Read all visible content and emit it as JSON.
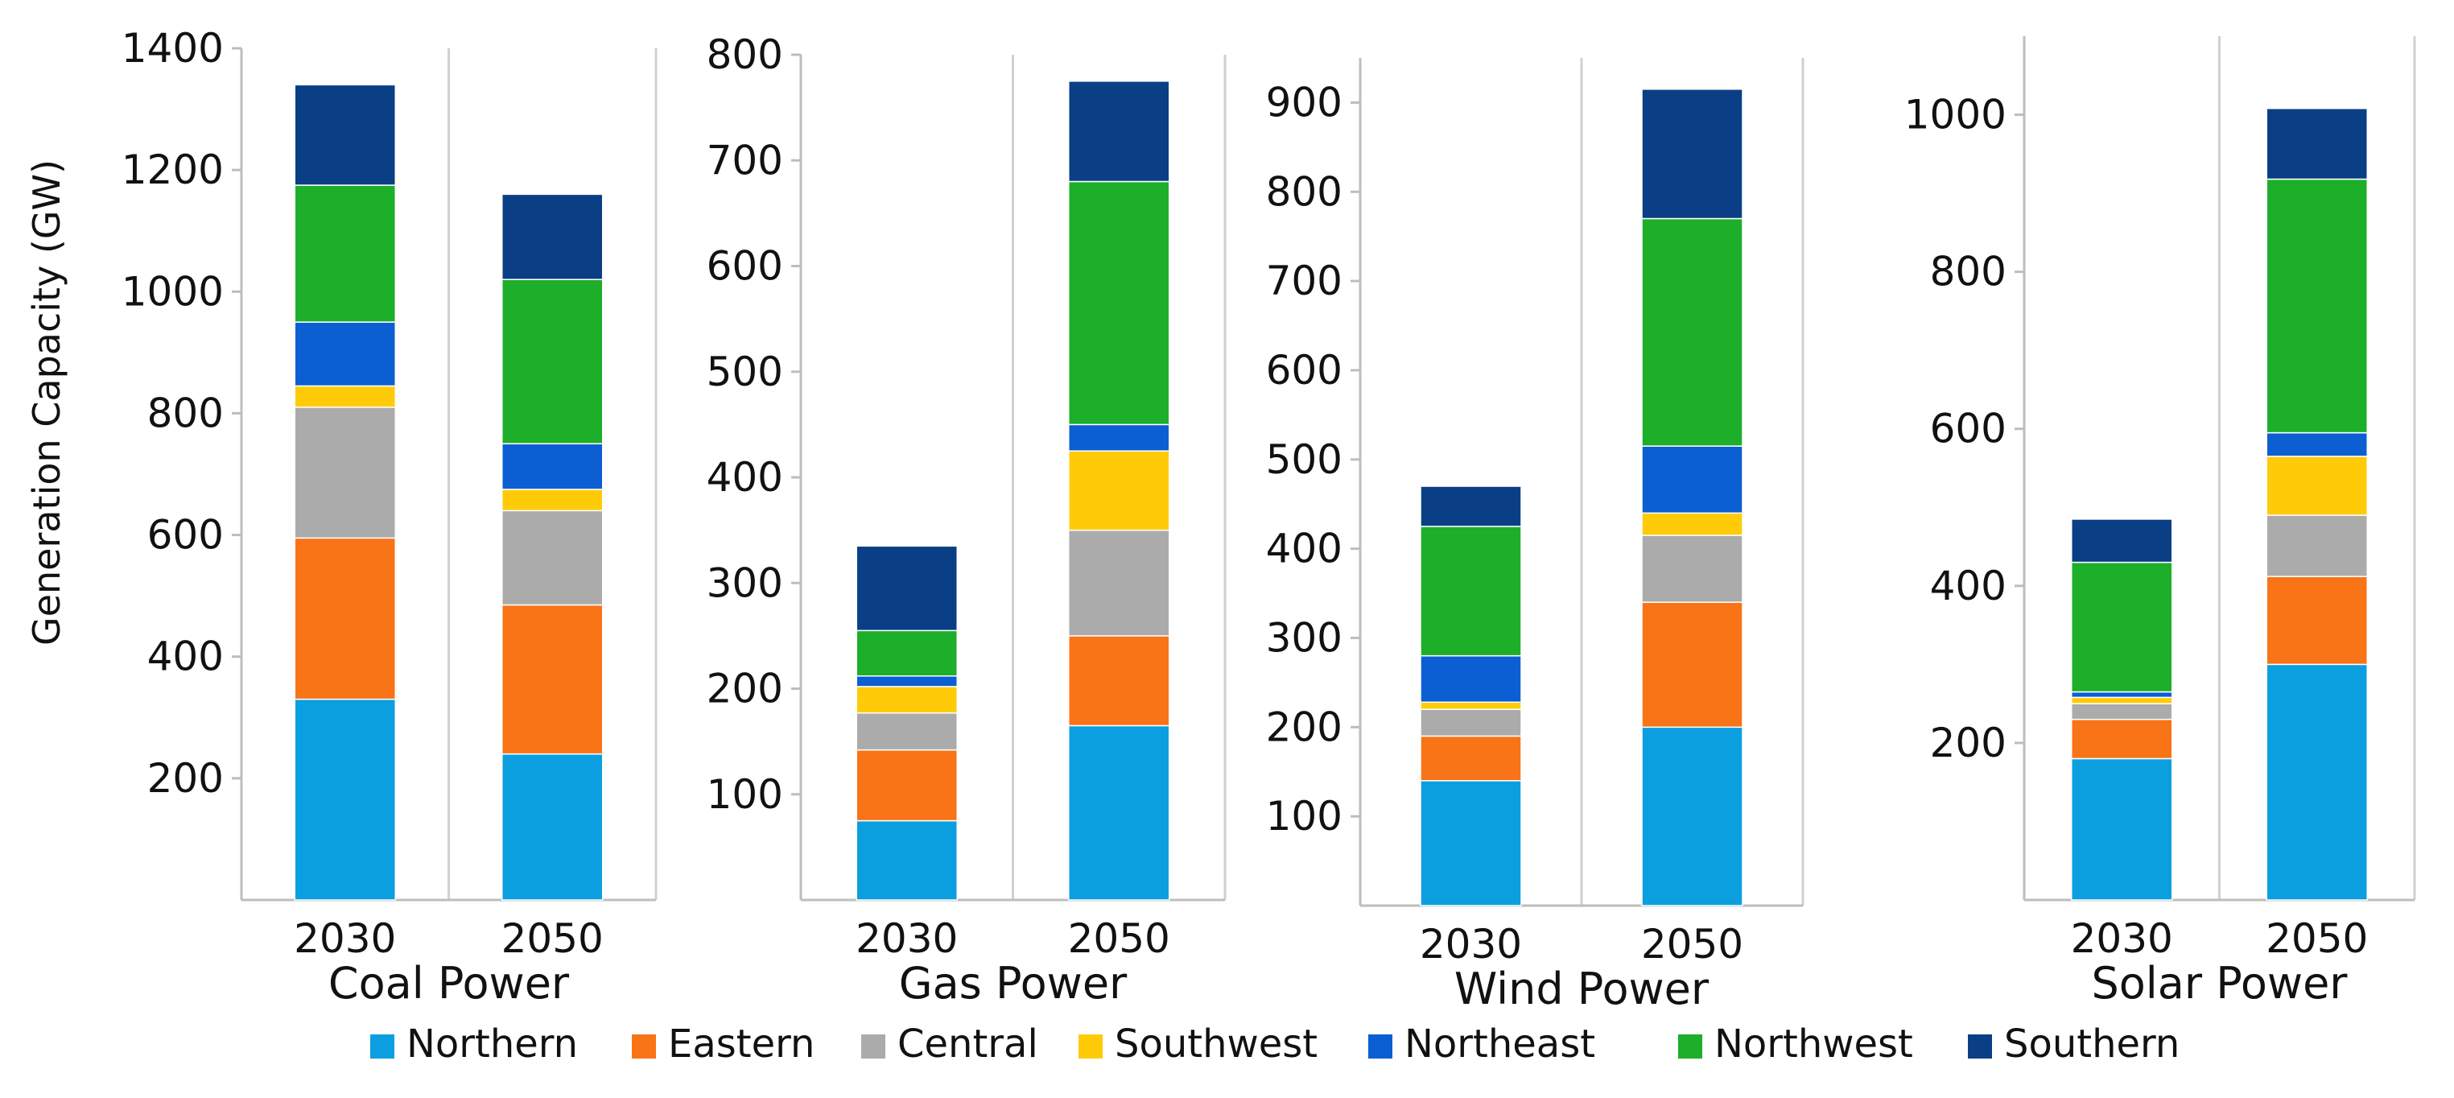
{
  "ylabel": "Generation Capacity (GW)",
  "legend": {
    "placement": "bottom",
    "items": [
      {
        "name": "Northern",
        "color": "#0B9FE0"
      },
      {
        "name": "Eastern",
        "color": "#F97317"
      },
      {
        "name": "Central",
        "color": "#ABABAB"
      },
      {
        "name": "Southwest",
        "color": "#FFCB08"
      },
      {
        "name": "Northeast",
        "color": "#0B5FD3"
      },
      {
        "name": "Northwest",
        "color": "#1DAE2A"
      },
      {
        "name": "Southern",
        "color": "#0A3F86"
      }
    ]
  },
  "chart_data": [
    {
      "type": "bar",
      "stacked": true,
      "title": "Coal Power",
      "categories": [
        "2030",
        "2050"
      ],
      "ylim": [
        0,
        1400
      ],
      "yticks": [
        200,
        400,
        600,
        800,
        1000,
        1200,
        1400
      ],
      "grid": "vertical",
      "series": [
        {
          "name": "Northern",
          "values": [
            330,
            240
          ]
        },
        {
          "name": "Eastern",
          "values": [
            265,
            245
          ]
        },
        {
          "name": "Central",
          "values": [
            215,
            155
          ]
        },
        {
          "name": "Southwest",
          "values": [
            35,
            35
          ]
        },
        {
          "name": "Northeast",
          "values": [
            105,
            75
          ]
        },
        {
          "name": "Northwest",
          "values": [
            225,
            270
          ]
        },
        {
          "name": "Southern",
          "values": [
            165,
            140
          ]
        }
      ]
    },
    {
      "type": "bar",
      "stacked": true,
      "title": "Gas Power",
      "categories": [
        "2030",
        "2050"
      ],
      "ylim": [
        0,
        800
      ],
      "yticks": [
        100,
        200,
        300,
        400,
        500,
        600,
        700,
        800
      ],
      "grid": "vertical",
      "series": [
        {
          "name": "Northern",
          "values": [
            75,
            165
          ]
        },
        {
          "name": "Eastern",
          "values": [
            67,
            85
          ]
        },
        {
          "name": "Central",
          "values": [
            35,
            100
          ]
        },
        {
          "name": "Southwest",
          "values": [
            25,
            75
          ]
        },
        {
          "name": "Northeast",
          "values": [
            10,
            25
          ]
        },
        {
          "name": "Northwest",
          "values": [
            43,
            230
          ]
        },
        {
          "name": "Southern",
          "values": [
            80,
            95
          ]
        }
      ]
    },
    {
      "type": "bar",
      "stacked": true,
      "title": "Wind Power",
      "categories": [
        "2030",
        "2050"
      ],
      "ylim": [
        0,
        950
      ],
      "yticks": [
        100,
        200,
        300,
        400,
        500,
        600,
        700,
        800,
        900
      ],
      "grid": "vertical",
      "series": [
        {
          "name": "Northern",
          "values": [
            140,
            200
          ]
        },
        {
          "name": "Eastern",
          "values": [
            50,
            140
          ]
        },
        {
          "name": "Central",
          "values": [
            30,
            75
          ]
        },
        {
          "name": "Southwest",
          "values": [
            8,
            25
          ]
        },
        {
          "name": "Northeast",
          "values": [
            52,
            75
          ]
        },
        {
          "name": "Northwest",
          "values": [
            145,
            255
          ]
        },
        {
          "name": "Southern",
          "values": [
            45,
            145
          ]
        }
      ]
    },
    {
      "type": "bar",
      "stacked": true,
      "title": "Solar Power",
      "categories": [
        "2030",
        "2050"
      ],
      "ylim": [
        0,
        1100
      ],
      "yticks": [
        200,
        400,
        600,
        800,
        1000
      ],
      "grid": "vertical",
      "series": [
        {
          "name": "Northern",
          "values": [
            180,
            300
          ]
        },
        {
          "name": "Eastern",
          "values": [
            50,
            112
          ]
        },
        {
          "name": "Central",
          "values": [
            20,
            78
          ]
        },
        {
          "name": "Southwest",
          "values": [
            8,
            75
          ]
        },
        {
          "name": "Northeast",
          "values": [
            7,
            30
          ]
        },
        {
          "name": "Northwest",
          "values": [
            165,
            323
          ]
        },
        {
          "name": "Southern",
          "values": [
            55,
            90
          ]
        }
      ]
    }
  ]
}
